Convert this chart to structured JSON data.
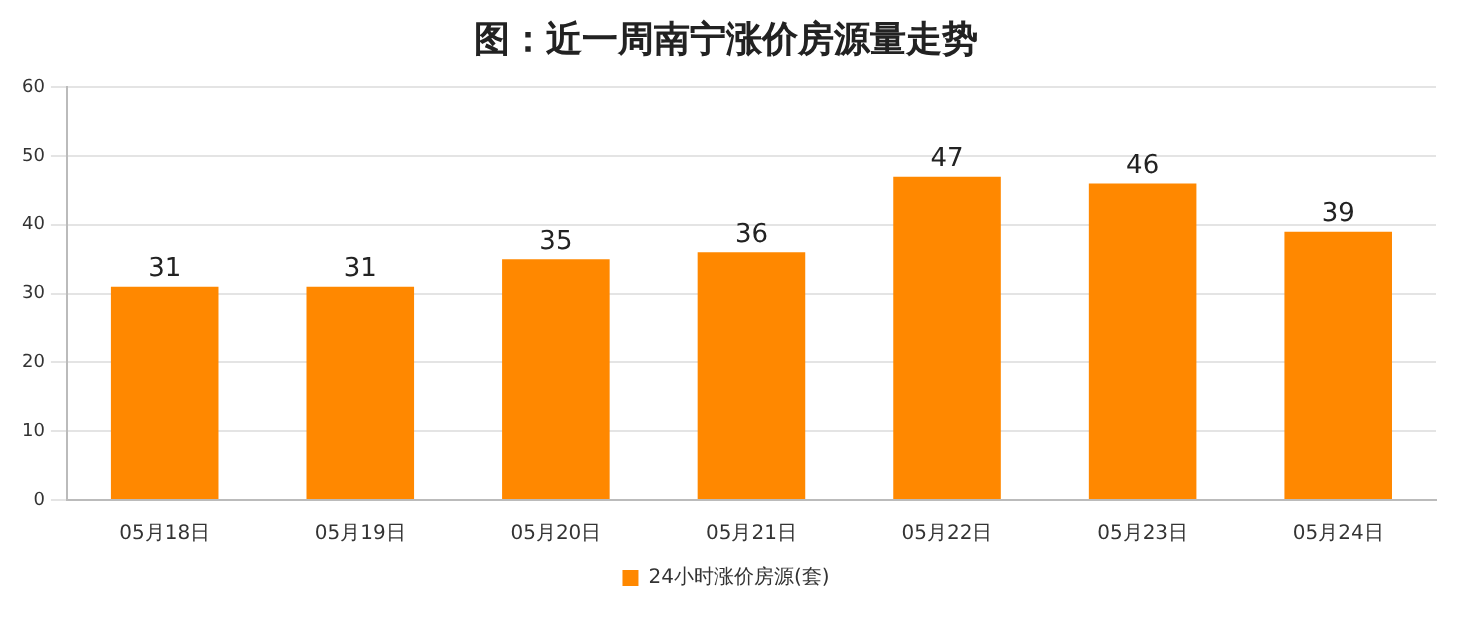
{
  "chart_data": {
    "type": "bar",
    "title": "图：近一周南宁涨价房源量走势",
    "categories": [
      "05月18日",
      "05月19日",
      "05月20日",
      "05月21日",
      "05月22日",
      "05月23日",
      "05月24日"
    ],
    "series": [
      {
        "name": "24小时涨价房源(套)",
        "color": "#ff8800",
        "values": [
          31,
          31,
          35,
          36,
          47,
          46,
          39
        ]
      }
    ],
    "ylim": [
      0,
      60
    ],
    "yticks": [
      0,
      10,
      20,
      30,
      40,
      50,
      60
    ],
    "grid": "y",
    "legend": "bottom",
    "data_labels": true
  }
}
